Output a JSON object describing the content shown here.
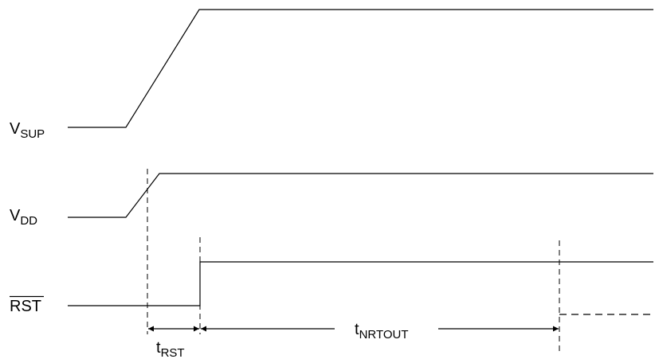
{
  "signals": {
    "vsup": {
      "main": "V",
      "sub": "SUP"
    },
    "vdd": {
      "main": "V",
      "sub": "DD"
    },
    "rst": {
      "main": "RST",
      "overline": true
    }
  },
  "intervals": {
    "t_rst": {
      "main": "t",
      "sub": "RST"
    },
    "t_nrtout": {
      "main": "t",
      "sub": "NRTOUT"
    }
  },
  "colors": {
    "line": "#000000",
    "background": "#ffffff"
  }
}
